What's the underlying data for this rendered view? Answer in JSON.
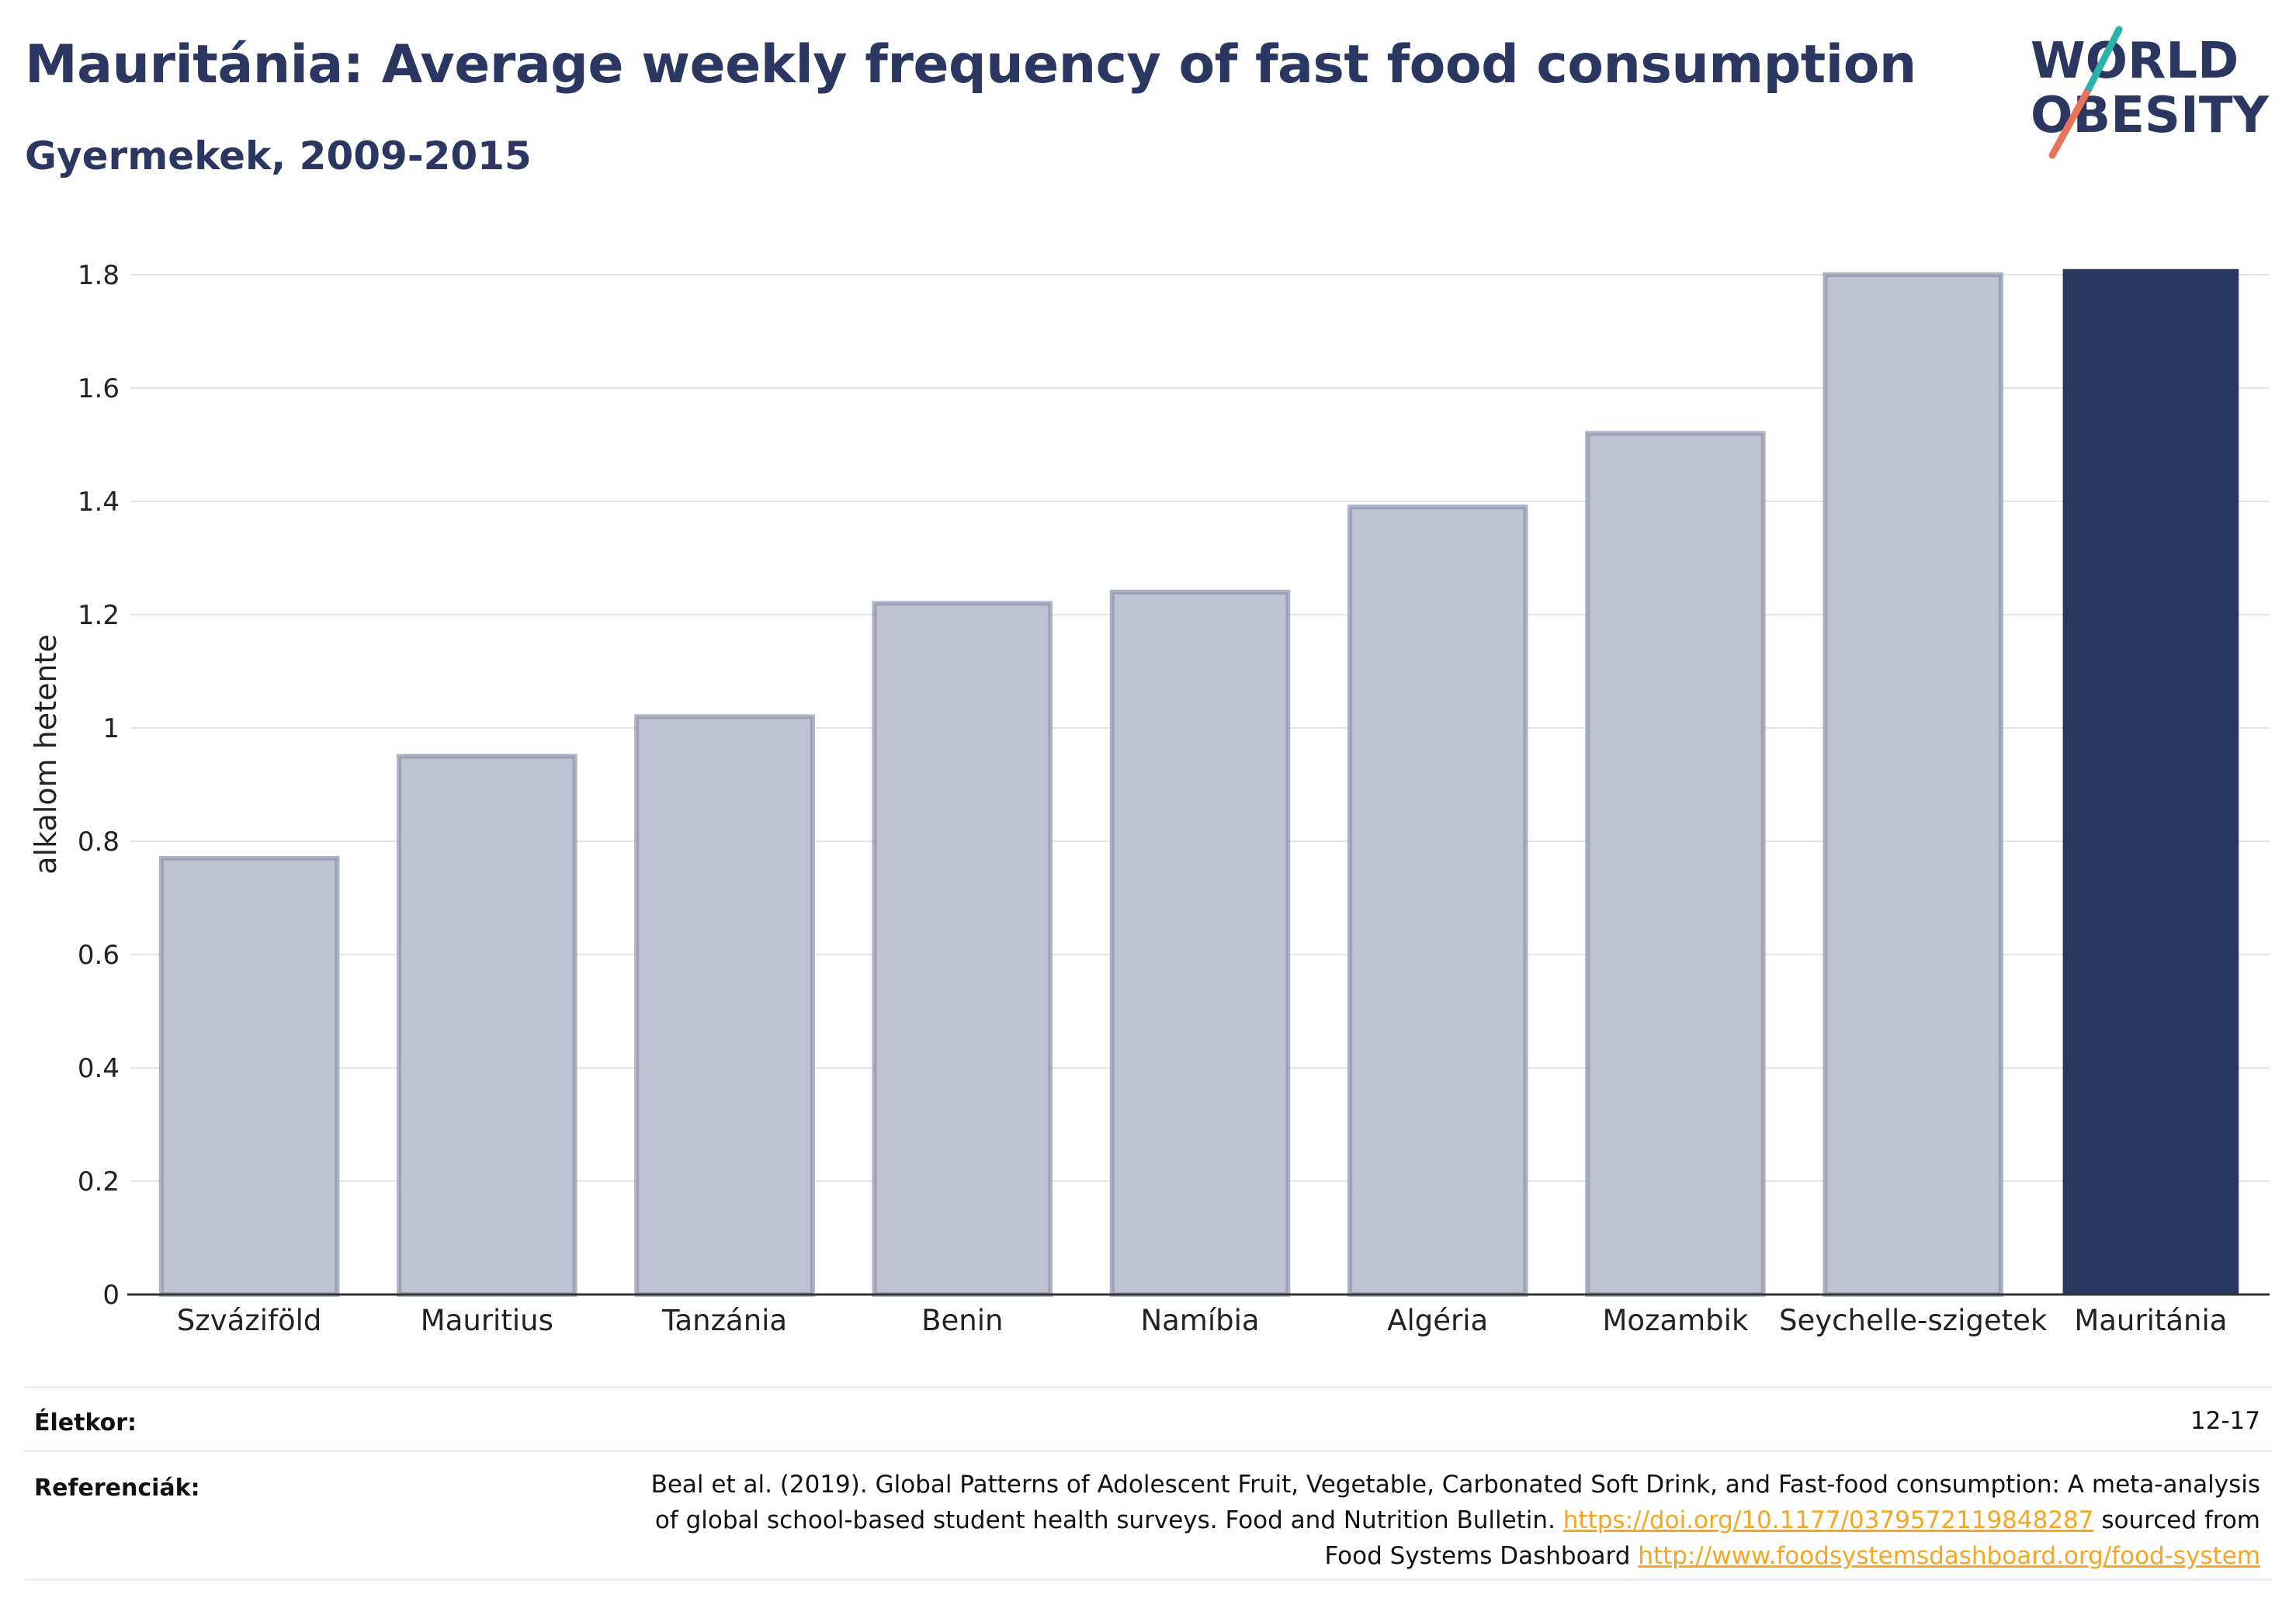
{
  "header": {
    "title": "Mauritánia: Average weekly frequency of fast food consumption",
    "subtitle": "Gyermekek, 2009-2015",
    "logo_line1": "WORLD",
    "logo_line2": "OBESITY"
  },
  "chart_data": {
    "type": "bar",
    "title": "Mauritánia: Average weekly frequency of fast food consumption",
    "subtitle": "Gyermekek, 2009-2015",
    "xlabel": "",
    "ylabel": "alkalom hetente",
    "categories": [
      "Szváziföld",
      "Mauritius",
      "Tanzánia",
      "Benin",
      "Namíbia",
      "Algéria",
      "Mozambik",
      "Seychelle-szigetek",
      "Mauritánia"
    ],
    "values": [
      0.77,
      0.95,
      1.02,
      1.22,
      1.24,
      1.39,
      1.52,
      1.8,
      1.81
    ],
    "highlight": "Mauritánia",
    "ylim": [
      0,
      1.8
    ],
    "yticks": [
      0,
      0.2,
      0.4,
      0.6,
      0.8,
      1,
      1.2,
      1.4,
      1.6,
      1.8
    ],
    "ytick_labels": [
      "0",
      "0.2",
      "0.4",
      "0.6",
      "0.8",
      "1",
      "1.2",
      "1.4",
      "1.6",
      "1.8"
    ],
    "grid": true,
    "colors": {
      "bar_fill": "#bfc3cf",
      "bar_stroke": "#8d93ab",
      "highlight_fill": "#2b3661",
      "grid": "#e6e6e6",
      "axis": "#333333",
      "text": "#222222"
    }
  },
  "footer": {
    "age_label": "Életkor:",
    "age_value": "12-17",
    "ref_label": "Referenciák:",
    "ref_text_1": "Beal et al. (2019). Global Patterns of Adolescent Fruit, Vegetable, Carbonated Soft Drink, and Fast-food consumption: A meta-analysis",
    "ref_text_2": "of global school-based student health surveys. Food and Nutrition Bulletin.",
    "ref_link_1": "https://doi.org/10.1177/0379572119848287",
    "ref_text_3": "sourced from",
    "ref_text_4": "Food Systems Dashboard",
    "ref_link_2": "http://www.foodsystemsdashboard.org/food-system",
    "link_color": "#f5a623"
  }
}
